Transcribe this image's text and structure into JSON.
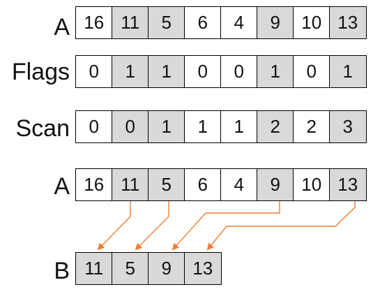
{
  "rows": [
    {
      "label": "A",
      "values": [
        "16",
        "11",
        "5",
        "6",
        "4",
        "9",
        "10",
        "13"
      ],
      "shaded": [
        false,
        true,
        true,
        false,
        false,
        true,
        false,
        true
      ]
    },
    {
      "label": "Flags",
      "values": [
        "0",
        "1",
        "1",
        "0",
        "0",
        "1",
        "0",
        "1"
      ],
      "shaded": [
        false,
        true,
        true,
        false,
        false,
        true,
        false,
        true
      ]
    },
    {
      "label": "Scan",
      "values": [
        "0",
        "0",
        "1",
        "1",
        "1",
        "2",
        "2",
        "3"
      ],
      "shaded": [
        false,
        true,
        true,
        false,
        false,
        true,
        false,
        true
      ]
    },
    {
      "label": "A",
      "values": [
        "16",
        "11",
        "5",
        "6",
        "4",
        "9",
        "10",
        "13"
      ],
      "shaded": [
        false,
        true,
        true,
        false,
        false,
        true,
        false,
        true
      ]
    }
  ],
  "output": {
    "label": "B",
    "values": [
      "11",
      "5",
      "9",
      "13"
    ]
  },
  "arrow_color": "#ed7d31",
  "shade_color": "#d9d9d9"
}
